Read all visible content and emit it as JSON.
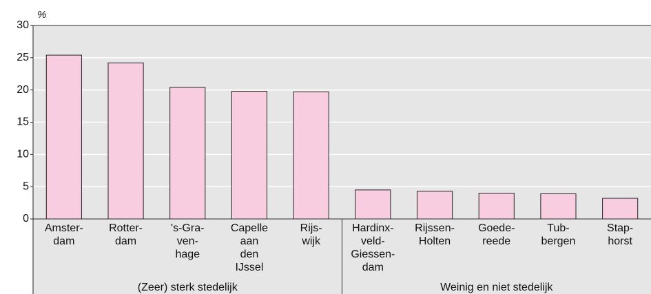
{
  "chart_data": {
    "type": "bar",
    "y_label": "%",
    "categories": [
      [
        "Amster-",
        "dam"
      ],
      [
        "Rotter-",
        "dam"
      ],
      [
        "'s-Gra-",
        "ven-",
        "hage"
      ],
      [
        "Capelle",
        "aan",
        "den",
        "IJssel"
      ],
      [
        "Rijs-",
        "wijk"
      ],
      [
        "Hardinx-",
        "veld-",
        "Giessen-",
        "dam"
      ],
      [
        "Rijssen-",
        "Holten"
      ],
      [
        "Goede-",
        "reede"
      ],
      [
        "Tub-",
        "bergen"
      ],
      [
        "Stap-",
        "horst"
      ]
    ],
    "values": [
      25.4,
      24.2,
      20.4,
      19.8,
      19.7,
      4.5,
      4.3,
      4.0,
      3.9,
      3.2
    ],
    "color": "#f9cde0",
    "groups": [
      {
        "name": "(Zeer) sterk stedelijk",
        "size": 5
      },
      {
        "name": "Weinig en niet stedelijk",
        "size": 5
      }
    ],
    "ylim": [
      0,
      30
    ],
    "yticks": [
      0,
      5,
      10,
      15,
      20,
      25,
      30
    ],
    "grid": true
  }
}
